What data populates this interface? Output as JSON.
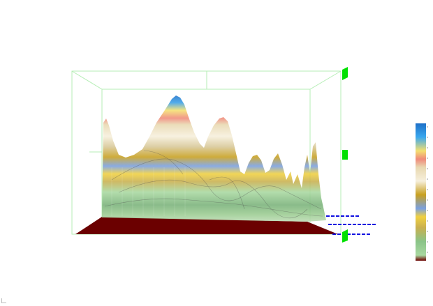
{
  "scene": {
    "type": "3d-surface-plot",
    "colormap": [
      "#6b0000",
      "#7ab27a",
      "#a8d8a0",
      "#e8c84a",
      "#c8a020",
      "#7aa0e0",
      "#f2ead2",
      "#d8c898",
      "#f08a7a",
      "#f4e070",
      "#2c8ad8",
      "#1e70c8"
    ],
    "box_color": "#9be79b",
    "handle_color": "#00e000",
    "marker_color": "#1010e0",
    "floor_color": "#6b0000"
  },
  "controls": {
    "handles": [
      "axis-handle-top",
      "axis-handle-middle",
      "axis-handle-bottom"
    ],
    "markers": [
      "depth-marker-1",
      "depth-marker-2",
      "depth-marker-3"
    ]
  }
}
